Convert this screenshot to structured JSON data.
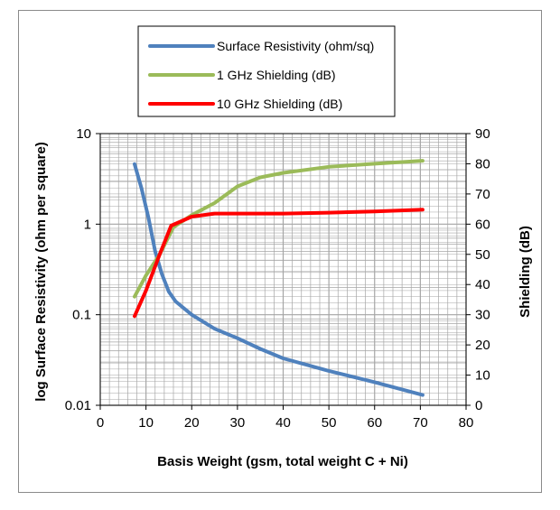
{
  "chart_data": {
    "type": "line",
    "title": "",
    "xlabel": "Basis Weight (gsm, total weight C + Ni)",
    "ylabel": "log Surface Resistivity (ohm per square)",
    "y2label": "Shielding (dB)",
    "xlim": [
      0,
      80
    ],
    "ylim": [
      0.01,
      10
    ],
    "yscale": "log",
    "y2lim": [
      0,
      90
    ],
    "x_ticks": [
      "0",
      "10",
      "20",
      "30",
      "40",
      "50",
      "60",
      "70",
      "80"
    ],
    "y_ticks": [
      "0.01",
      "0.1",
      "1",
      "10"
    ],
    "y2_ticks": [
      "0",
      "10",
      "20",
      "30",
      "40",
      "50",
      "60",
      "70",
      "80",
      "90"
    ],
    "grid": true,
    "legend_position": "top-center",
    "series": [
      {
        "name": "Surface Resistivity (ohm/sq)",
        "axis": "left",
        "color": "#4f81bd",
        "points": [
          [
            7.5,
            4.6
          ],
          [
            9,
            2.5
          ],
          [
            10.5,
            1.2
          ],
          [
            12,
            0.5
          ],
          [
            13.5,
            0.28
          ],
          [
            15,
            0.18
          ],
          [
            16.5,
            0.14
          ],
          [
            20,
            0.1
          ],
          [
            25,
            0.07
          ],
          [
            30,
            0.055
          ],
          [
            35,
            0.042
          ],
          [
            40,
            0.033
          ],
          [
            50,
            0.024
          ],
          [
            60,
            0.018
          ],
          [
            70.5,
            0.013
          ]
        ]
      },
      {
        "name": "1 GHz Shielding (dB)",
        "axis": "right",
        "color": "#9bbb59",
        "points": [
          [
            7.5,
            36
          ],
          [
            10,
            43
          ],
          [
            13,
            50
          ],
          [
            16,
            59
          ],
          [
            20,
            63
          ],
          [
            25,
            67
          ],
          [
            30,
            72.5
          ],
          [
            35,
            75.5
          ],
          [
            40,
            77
          ],
          [
            50,
            79
          ],
          [
            60,
            80
          ],
          [
            70.5,
            81
          ]
        ]
      },
      {
        "name": "10 GHz Shielding (dB)",
        "axis": "right",
        "color": "#ff0000",
        "points": [
          [
            7.5,
            29.5
          ],
          [
            10,
            38
          ],
          [
            13,
            50
          ],
          [
            15.5,
            59.5
          ],
          [
            20,
            62.5
          ],
          [
            25,
            63.5
          ],
          [
            30,
            63.5
          ],
          [
            40,
            63.5
          ],
          [
            50,
            63.8
          ],
          [
            60,
            64.2
          ],
          [
            70.5,
            64.8
          ]
        ]
      }
    ]
  }
}
